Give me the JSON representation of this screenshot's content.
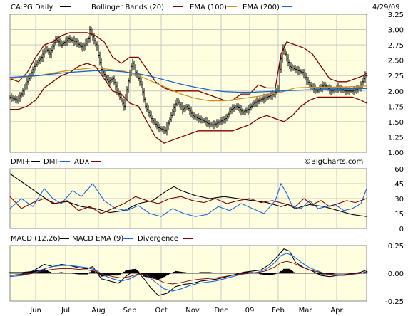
{
  "header": {
    "symbol_label": "CA:PG Daily",
    "bb_label": "Bollinger Bands (20)",
    "ema100_label": "EMA (100)",
    "ema200_label": "EMA (200)",
    "date_label": "4/29/09"
  },
  "dmi_panel": {
    "dmi_plus_label": "DMI+",
    "dmi_minus_label": "DMI-",
    "adx_label": "ADX",
    "watermark": "©BigCharts.com"
  },
  "macd_panel": {
    "macd_label": "MACD (12,26)",
    "macd_ema_label": "MACD EMA (9)",
    "divergence_label": "Divergence"
  },
  "colors": {
    "panel_bg": "#ffffe0",
    "price": "#000000",
    "bollinger": "#800000",
    "ema100": "#d09020",
    "ema200": "#1a66c8",
    "dmi_plus": "#000000",
    "dmi_minus": "#1a66e0",
    "adx": "#800000",
    "macd": "#000000",
    "macd_ema": "#1a66e0",
    "divergence": "#000000"
  },
  "chart_data": [
    {
      "type": "ohlc",
      "name": "price",
      "ylim": [
        1.0,
        3.25
      ],
      "yticks": [
        "3.25",
        "3.00",
        "2.75",
        "2.50",
        "2.25",
        "2.00",
        "1.75",
        "1.50",
        "1.25",
        "1.00"
      ],
      "xticks": [
        "Jun",
        "Jul",
        "Aug",
        "Sep",
        "Oct",
        "Nov",
        "Dec",
        "09",
        "Feb",
        "Mar",
        "Apr"
      ],
      "close": {
        "x": [
          0,
          5,
          8,
          11,
          14,
          17,
          22,
          25,
          28,
          32,
          36,
          41,
          46,
          51,
          55,
          56,
          61,
          64,
          69,
          72,
          76,
          80,
          84,
          85,
          86,
          88,
          92,
          95,
          99,
          104,
          109,
          113,
          117,
          121,
          124,
          128,
          132,
          137,
          140,
          143,
          147,
          151,
          155,
          159,
          163,
          167,
          171,
          175,
          180,
          185,
          188,
          189,
          191,
          193,
          196,
          200,
          205,
          210,
          215,
          220,
          225,
          230,
          235,
          240,
          245,
          249
        ],
        "y": [
          1.9,
          1.85,
          1.95,
          2.1,
          2.25,
          2.4,
          2.55,
          2.7,
          2.6,
          2.85,
          2.75,
          2.85,
          2.8,
          2.7,
          2.85,
          3.0,
          2.7,
          2.35,
          2.15,
          2.2,
          1.95,
          1.75,
          2.3,
          2.4,
          2.45,
          2.3,
          2.1,
          1.75,
          1.55,
          1.4,
          1.35,
          1.6,
          1.85,
          1.7,
          1.75,
          1.6,
          1.55,
          1.5,
          1.45,
          1.45,
          1.5,
          1.55,
          1.7,
          1.75,
          1.65,
          1.7,
          1.8,
          1.85,
          1.9,
          1.95,
          2.05,
          2.35,
          2.7,
          2.6,
          2.4,
          2.35,
          2.3,
          2.1,
          2.0,
          2.1,
          2.0,
          2.05,
          2.0,
          2.0,
          2.05,
          2.25
        ]
      },
      "bollinger_upper": {
        "x": [
          0,
          6,
          12,
          18,
          24,
          30,
          36,
          42,
          48,
          54,
          60,
          66,
          72,
          78,
          84,
          90,
          96,
          102,
          108,
          114,
          120,
          126,
          132,
          138,
          144,
          150,
          156,
          162,
          168,
          174,
          180,
          186,
          190,
          194,
          200,
          206,
          212,
          218,
          224,
          230,
          236,
          242,
          248,
          250
        ],
        "y": [
          2.2,
          2.15,
          2.3,
          2.55,
          2.75,
          2.8,
          2.9,
          2.95,
          2.95,
          2.95,
          2.9,
          2.8,
          2.55,
          2.45,
          2.55,
          2.55,
          2.35,
          2.15,
          2.05,
          2.0,
          2.0,
          2.0,
          2.0,
          1.95,
          1.9,
          1.85,
          1.85,
          1.95,
          1.95,
          2.1,
          2.05,
          2.05,
          2.6,
          2.8,
          2.75,
          2.7,
          2.6,
          2.4,
          2.2,
          2.15,
          2.15,
          2.2,
          2.25,
          2.3
        ]
      },
      "bollinger_lower": {
        "x": [
          0,
          6,
          12,
          18,
          24,
          30,
          36,
          42,
          48,
          54,
          60,
          66,
          72,
          78,
          84,
          90,
          96,
          102,
          108,
          114,
          120,
          126,
          132,
          138,
          144,
          150,
          156,
          162,
          168,
          174,
          180,
          186,
          192,
          198,
          204,
          210,
          216,
          222,
          228,
          234,
          240,
          246,
          250
        ],
        "y": [
          1.7,
          1.7,
          1.75,
          1.85,
          2.05,
          2.15,
          2.25,
          2.3,
          2.4,
          2.45,
          2.4,
          2.2,
          2.0,
          1.95,
          1.8,
          1.75,
          1.5,
          1.25,
          1.15,
          1.2,
          1.25,
          1.3,
          1.35,
          1.35,
          1.35,
          1.35,
          1.35,
          1.4,
          1.45,
          1.55,
          1.6,
          1.55,
          1.5,
          1.6,
          1.75,
          1.85,
          1.9,
          1.9,
          1.9,
          1.9,
          1.9,
          1.85,
          1.8
        ]
      },
      "ema100": {
        "x": [
          0,
          20,
          40,
          60,
          70,
          80,
          90,
          100,
          110,
          120,
          130,
          140,
          150,
          160,
          170,
          180,
          190,
          200,
          210,
          220,
          230,
          240,
          250
        ],
        "y": [
          2.2,
          2.25,
          2.33,
          2.38,
          2.35,
          2.32,
          2.25,
          2.15,
          2.05,
          1.95,
          1.88,
          1.84,
          1.84,
          1.87,
          1.9,
          1.93,
          1.98,
          2.05,
          2.06,
          2.06,
          2.06,
          2.07,
          2.08
        ]
      },
      "ema200": {
        "x": [
          0,
          20,
          40,
          60,
          70,
          80,
          90,
          100,
          110,
          120,
          130,
          140,
          150,
          160,
          170,
          180,
          190,
          200,
          210,
          220,
          230,
          240,
          250
        ],
        "y": [
          2.22,
          2.25,
          2.3,
          2.33,
          2.33,
          2.31,
          2.28,
          2.23,
          2.17,
          2.11,
          2.06,
          2.02,
          1.99,
          1.98,
          1.98,
          1.99,
          2.0,
          2.01,
          2.02,
          2.03,
          2.03,
          2.04,
          2.04
        ]
      }
    },
    {
      "type": "line",
      "name": "dmi",
      "ylim": [
        0,
        60
      ],
      "yticks": [
        "60",
        "45",
        "30",
        "15",
        "0"
      ],
      "series": [
        {
          "name": "DMI+",
          "x": [
            0,
            10,
            20,
            30,
            40,
            50,
            60,
            70,
            80,
            90,
            100,
            110,
            115,
            120,
            130,
            140,
            150,
            160,
            170,
            180,
            190,
            195,
            200,
            210,
            220,
            230,
            240,
            250
          ],
          "y": [
            55,
            45,
            35,
            25,
            27,
            22,
            20,
            16,
            18,
            25,
            28,
            38,
            42,
            38,
            33,
            30,
            32,
            30,
            28,
            26,
            22,
            24,
            20,
            24,
            22,
            18,
            14,
            12
          ]
        },
        {
          "name": "DMI-",
          "x": [
            0,
            8,
            16,
            24,
            30,
            36,
            44,
            50,
            58,
            66,
            74,
            82,
            90,
            98,
            106,
            114,
            122,
            130,
            138,
            146,
            154,
            162,
            170,
            178,
            186,
            190,
            194,
            198,
            204,
            210,
            216,
            222,
            228,
            234,
            240,
            246,
            250
          ],
          "y": [
            20,
            30,
            22,
            40,
            30,
            25,
            38,
            32,
            45,
            28,
            20,
            18,
            23,
            15,
            12,
            20,
            15,
            12,
            14,
            22,
            18,
            25,
            20,
            15,
            28,
            45,
            35,
            22,
            20,
            28,
            20,
            22,
            24,
            18,
            20,
            25,
            40
          ]
        },
        {
          "name": "ADX",
          "x": [
            0,
            8,
            16,
            24,
            32,
            40,
            48,
            56,
            64,
            72,
            80,
            88,
            96,
            104,
            112,
            120,
            128,
            136,
            144,
            152,
            160,
            168,
            176,
            184,
            192,
            200,
            206,
            212,
            218,
            224,
            230,
            236,
            242,
            250
          ],
          "y": [
            32,
            20,
            26,
            30,
            25,
            28,
            18,
            22,
            15,
            20,
            25,
            32,
            28,
            25,
            30,
            32,
            28,
            26,
            30,
            25,
            28,
            30,
            26,
            28,
            25,
            22,
            30,
            24,
            28,
            22,
            25,
            28,
            26,
            30
          ]
        }
      ]
    },
    {
      "type": "line",
      "name": "macd",
      "ylim": [
        -0.25,
        0.25
      ],
      "yticks": [
        "0.25",
        "0.00",
        "-0.25"
      ],
      "series": [
        {
          "name": "MACD",
          "x": [
            0,
            8,
            16,
            24,
            30,
            36,
            42,
            48,
            54,
            58,
            64,
            70,
            76,
            82,
            88,
            94,
            98,
            104,
            110,
            116,
            122,
            128,
            134,
            140,
            146,
            152,
            158,
            164,
            170,
            176,
            182,
            188,
            192,
            196,
            200,
            206,
            212,
            218,
            224,
            230,
            236,
            242,
            246,
            250
          ],
          "y": [
            -0.02,
            -0.01,
            0.02,
            0.08,
            0.06,
            0.08,
            0.07,
            0.05,
            0.04,
            0.06,
            -0.05,
            -0.07,
            -0.09,
            -0.02,
            0.03,
            -0.05,
            -0.12,
            -0.2,
            -0.18,
            -0.12,
            -0.1,
            -0.09,
            -0.07,
            -0.06,
            -0.05,
            -0.03,
            -0.01,
            0.01,
            0.02,
            0.03,
            0.08,
            0.16,
            0.22,
            0.2,
            0.1,
            0.05,
            0.02,
            -0.02,
            -0.03,
            -0.02,
            -0.01,
            0.0,
            0.01,
            0.03
          ]
        },
        {
          "name": "MACD EMA (9)",
          "x": [
            0,
            8,
            16,
            24,
            30,
            36,
            42,
            48,
            54,
            60,
            66,
            72,
            78,
            84,
            90,
            96,
            102,
            108,
            114,
            120,
            126,
            132,
            138,
            144,
            150,
            156,
            162,
            168,
            174,
            180,
            186,
            190,
            194,
            198,
            204,
            210,
            216,
            222,
            228,
            234,
            240,
            246,
            250
          ],
          "y": [
            -0.03,
            -0.02,
            0.0,
            0.04,
            0.06,
            0.07,
            0.07,
            0.06,
            0.05,
            0.03,
            -0.02,
            -0.05,
            -0.07,
            -0.05,
            -0.01,
            -0.02,
            -0.08,
            -0.14,
            -0.16,
            -0.14,
            -0.11,
            -0.09,
            -0.08,
            -0.07,
            -0.05,
            -0.03,
            -0.01,
            0.0,
            0.01,
            0.04,
            0.1,
            0.16,
            0.18,
            0.16,
            0.1,
            0.05,
            0.02,
            -0.01,
            -0.02,
            -0.02,
            -0.01,
            0.0,
            0.01
          ]
        },
        {
          "name": "Divergence",
          "x": [
            0,
            8,
            16,
            24,
            30,
            36,
            42,
            48,
            54,
            58,
            64,
            70,
            76,
            82,
            88,
            94,
            98,
            104,
            110,
            116,
            122,
            128,
            134,
            140,
            146,
            152,
            158,
            164,
            170,
            176,
            182,
            188,
            192,
            196,
            200,
            206,
            212,
            218,
            224,
            230,
            236,
            242,
            246,
            250
          ],
          "y": [
            0.01,
            0.01,
            0.02,
            0.04,
            0.0,
            0.01,
            0.0,
            -0.01,
            -0.01,
            0.03,
            -0.03,
            -0.02,
            -0.02,
            0.03,
            0.04,
            -0.03,
            -0.04,
            -0.06,
            -0.02,
            0.02,
            0.01,
            0.0,
            0.01,
            0.01,
            0.0,
            0.0,
            0.0,
            0.01,
            0.01,
            -0.01,
            -0.02,
            0.0,
            0.04,
            0.04,
            0.0,
            0.0,
            0.0,
            -0.01,
            -0.01,
            0.0,
            0.0,
            0.0,
            0.0,
            0.02
          ]
        }
      ]
    }
  ]
}
